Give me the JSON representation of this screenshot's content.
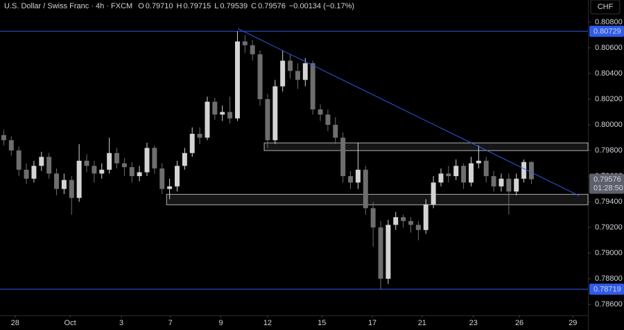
{
  "chart_data": {
    "type": "candlestick",
    "title": "U.S. Dollar / Swiss Franc · 4h · FXCM",
    "ohlc_legend": [
      {
        "key": "O",
        "text": "0.79710"
      },
      {
        "key": "H",
        "text": "0.79715"
      },
      {
        "key": "L",
        "text": "0.79539"
      },
      {
        "key": "C",
        "text": "0.79576"
      }
    ],
    "change": "−0.00134 (−0.17%)",
    "currency": "CHF",
    "countdown": "01:28:50",
    "last_price": {
      "value": 0.79576,
      "label": "0.79576"
    },
    "open": [
      0.7992,
      0.7988,
      0.798,
      0.7965,
      0.7958,
      0.7968,
      0.7975,
      0.7962,
      0.795,
      0.7957,
      0.7943,
      0.7972,
      0.7968,
      0.7962,
      0.7965,
      0.7978,
      0.797,
      0.7967,
      0.796,
      0.7963,
      0.7982,
      0.7966,
      0.795,
      0.7952,
      0.7968,
      0.7978,
      0.7993,
      0.799,
      0.8018,
      0.8008,
      0.801,
      0.8005,
      0.8065,
      0.8062,
      0.8055,
      0.802,
      0.7988,
      0.803,
      0.805,
      0.8042,
      0.8035,
      0.8048,
      0.8012,
      0.8008,
      0.8,
      0.799,
      0.796,
      0.7955,
      0.7965,
      0.7935,
      0.792,
      0.788,
      0.7922,
      0.7928,
      0.7925,
      0.7922,
      0.7918,
      0.7938,
      0.7955,
      0.7962,
      0.796,
      0.7968,
      0.7955,
      0.797,
      0.7972,
      0.796,
      0.7952,
      0.7958,
      0.7948,
      0.7958,
      0.7971
    ],
    "high": [
      0.7996,
      0.7991,
      0.7983,
      0.797,
      0.7972,
      0.7979,
      0.7978,
      0.7966,
      0.7962,
      0.796,
      0.7985,
      0.7977,
      0.7972,
      0.797,
      0.799,
      0.7982,
      0.7974,
      0.7971,
      0.7968,
      0.7986,
      0.7984,
      0.797,
      0.7958,
      0.7972,
      0.7982,
      0.7998,
      0.7998,
      0.8022,
      0.8021,
      0.8015,
      0.8022,
      0.80729,
      0.807,
      0.8066,
      0.8058,
      0.8024,
      0.8035,
      0.8058,
      0.8055,
      0.8048,
      0.8052,
      0.805,
      0.8016,
      0.8012,
      0.8006,
      0.7994,
      0.7964,
      0.7986,
      0.7968,
      0.794,
      0.7925,
      0.7926,
      0.7932,
      0.793,
      0.7928,
      0.7925,
      0.7942,
      0.796,
      0.7966,
      0.7968,
      0.7973,
      0.797,
      0.7975,
      0.7984,
      0.7975,
      0.7964,
      0.7962,
      0.7962,
      0.7962,
      0.7973,
      0.79715
    ],
    "low": [
      0.7984,
      0.7976,
      0.796,
      0.7954,
      0.7955,
      0.7964,
      0.7958,
      0.7945,
      0.7946,
      0.793,
      0.794,
      0.7963,
      0.7955,
      0.7958,
      0.7962,
      0.7966,
      0.796,
      0.7955,
      0.7956,
      0.796,
      0.7962,
      0.7946,
      0.7942,
      0.7948,
      0.7965,
      0.7975,
      0.7985,
      0.7988,
      0.8004,
      0.8003,
      0.8001,
      0.8003,
      0.8056,
      0.805,
      0.8015,
      0.7982,
      0.7985,
      0.8026,
      0.8036,
      0.8028,
      0.803,
      0.8008,
      0.8003,
      0.7995,
      0.7985,
      0.7955,
      0.795,
      0.795,
      0.793,
      0.7905,
      0.78719,
      0.7876,
      0.7918,
      0.792,
      0.7916,
      0.791,
      0.7915,
      0.7935,
      0.7952,
      0.7955,
      0.7957,
      0.795,
      0.7952,
      0.7966,
      0.7955,
      0.7948,
      0.7948,
      0.793,
      0.7945,
      0.7955,
      0.79539
    ],
    "close": [
      0.7988,
      0.798,
      0.7965,
      0.7958,
      0.7968,
      0.7975,
      0.7962,
      0.795,
      0.7957,
      0.7943,
      0.7972,
      0.7968,
      0.7962,
      0.7965,
      0.7978,
      0.797,
      0.7967,
      0.796,
      0.7963,
      0.7982,
      0.7966,
      0.795,
      0.7952,
      0.7968,
      0.7978,
      0.7993,
      0.799,
      0.8018,
      0.8008,
      0.801,
      0.8005,
      0.8065,
      0.8062,
      0.8055,
      0.802,
      0.7988,
      0.803,
      0.805,
      0.8042,
      0.8035,
      0.8048,
      0.8012,
      0.8008,
      0.8,
      0.799,
      0.796,
      0.7955,
      0.7965,
      0.7935,
      0.792,
      0.788,
      0.7922,
      0.7928,
      0.7925,
      0.7922,
      0.7918,
      0.7938,
      0.7955,
      0.7962,
      0.796,
      0.7968,
      0.7955,
      0.797,
      0.7972,
      0.796,
      0.7952,
      0.7958,
      0.7948,
      0.7958,
      0.7971,
      0.79576
    ],
    "up_color": "#d4d4d4",
    "down_color": "#6e6e6e",
    "xlim": [
      -0.5,
      77.5
    ],
    "xticks": [
      {
        "value": 1.5,
        "label": "28"
      },
      {
        "value": 8.8,
        "label": "Oct"
      },
      {
        "value": 15.6,
        "label": "3"
      },
      {
        "value": 22.1,
        "label": "7"
      },
      {
        "value": 28.8,
        "label": "9"
      },
      {
        "value": 35.0,
        "label": "12"
      },
      {
        "value": 42.2,
        "label": "15"
      },
      {
        "value": 48.9,
        "label": "17"
      },
      {
        "value": 55.5,
        "label": "21"
      },
      {
        "value": 62.3,
        "label": "23"
      },
      {
        "value": 68.4,
        "label": "26"
      },
      {
        "value": 75.5,
        "label": "29"
      }
    ],
    "ylim": [
      0.78514,
      0.80973
    ],
    "yticks": [
      {
        "value": 0.786,
        "label": "0.78600"
      },
      {
        "value": 0.788,
        "label": "0.78800"
      },
      {
        "value": 0.79,
        "label": "0.79000"
      },
      {
        "value": 0.792,
        "label": "0.79200"
      },
      {
        "value": 0.794,
        "label": "0.79400"
      },
      {
        "value": 0.796,
        "label": "0.79600"
      },
      {
        "value": 0.798,
        "label": "0.79800"
      },
      {
        "value": 0.8,
        "label": "0.80000"
      },
      {
        "value": 0.802,
        "label": "0.80200"
      },
      {
        "value": 0.804,
        "label": "0.80400"
      },
      {
        "value": 0.806,
        "label": "0.80600"
      },
      {
        "value": 0.808,
        "label": "0.80800"
      }
    ],
    "grid": false,
    "hlines": [
      {
        "value": 0.80729,
        "label": "0.80729"
      },
      {
        "value": 0.78719,
        "label": "0.78719"
      }
    ],
    "hline_color": "#2f5bea",
    "trendline": {
      "x": [
        31.05,
        76.3
      ],
      "y": [
        0.8075,
        0.79448
      ]
    },
    "zones": [
      {
        "x": [
          34.55,
          77.5
        ],
        "y": [
          0.79859,
          0.79799
        ]
      },
      {
        "x": [
          21.6,
          77.5
        ],
        "y": [
          0.79458,
          0.79377
        ]
      }
    ]
  }
}
